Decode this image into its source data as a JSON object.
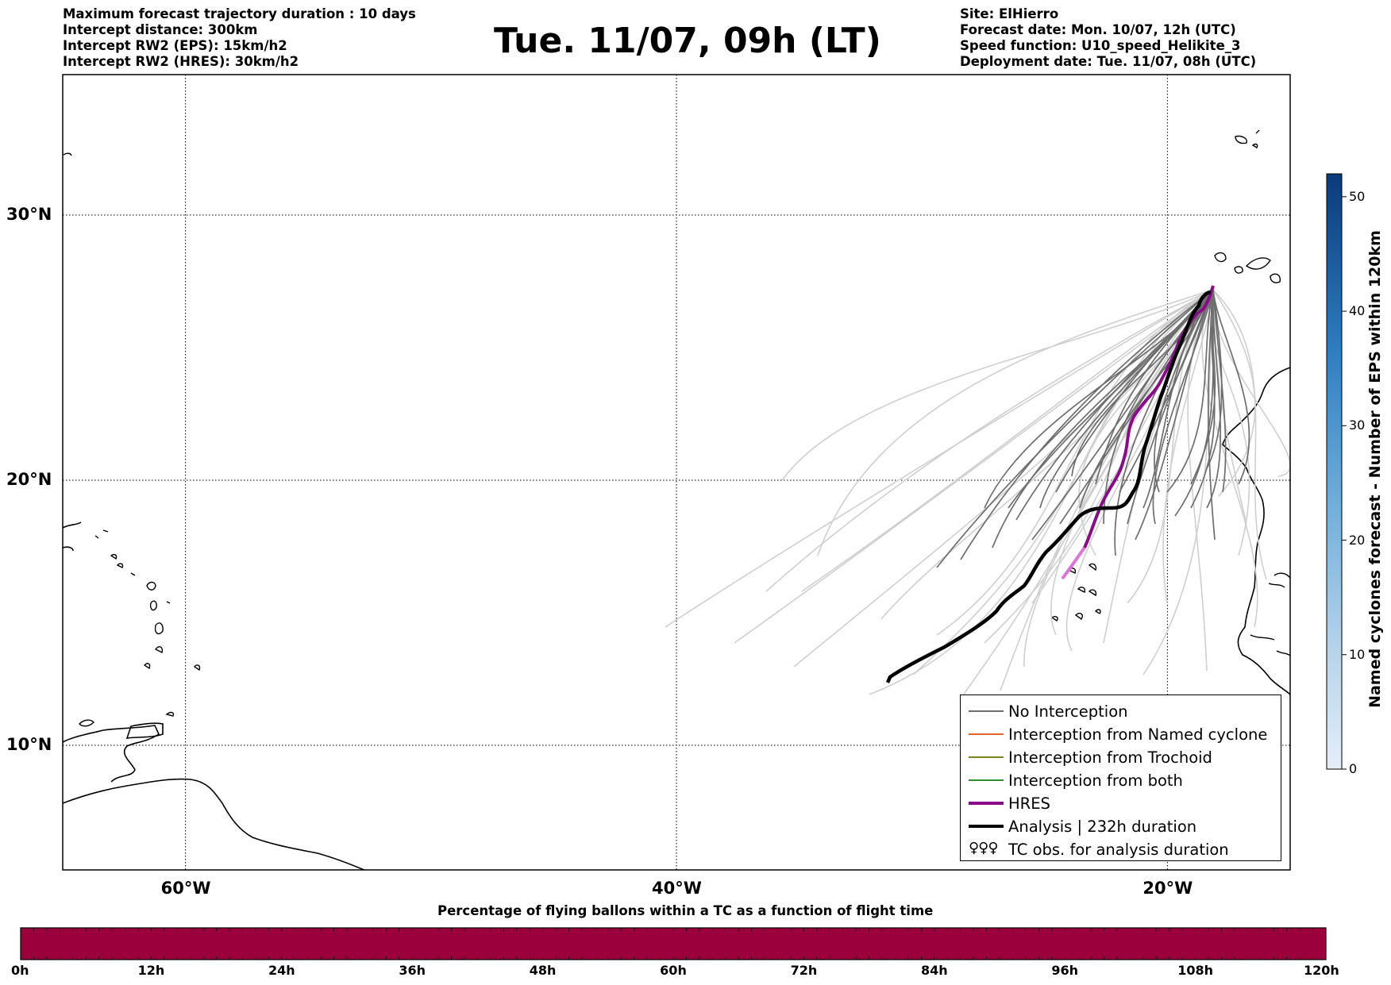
{
  "header": {
    "left_lines": [
      "Maximum forecast trajectory duration : 10 days",
      "Intercept distance: 300km",
      "Intercept RW2 (EPS):  15km/h2",
      "Intercept RW2 (HRES): 30km/h2"
    ],
    "title": "Tue. 11/07, 09h (LT)",
    "right_lines": [
      "Site: ElHierro",
      "Forecast date: Mon. 10/07, 12h (UTC)",
      "Speed function: U10_speed_Helikite_3",
      "Deployment date: Tue. 11/07, 08h (UTC)"
    ]
  },
  "map": {
    "lat_labels": [
      "30°N",
      "20°N",
      "10°N"
    ],
    "lon_labels": [
      "60°W",
      "40°W",
      "20°W"
    ],
    "lat_lines": [
      30,
      20,
      10
    ],
    "lon_lines": [
      -60,
      -40,
      -20
    ],
    "extent": {
      "lon_min": -65,
      "lon_max": -15,
      "lat_min": 5.3,
      "lat_max": 35.3
    },
    "colors": {
      "no_interception": "#6e6e6e",
      "faded_trajectory": "#cfcfcf",
      "named_cyclone": "#e8622c",
      "trochoid": "#808020",
      "both": "#2e8b2e",
      "hres": "#8b0a8b",
      "hres_tail": "#e070e0",
      "analysis": "#000000"
    }
  },
  "legend": {
    "items": [
      {
        "label": "No Interception",
        "color": "#6e6e6e",
        "style": "thin"
      },
      {
        "label": "Interception from Named cyclone",
        "color": "#e8622c",
        "style": "thin"
      },
      {
        "label": "Interception from Trochoid",
        "color": "#808020",
        "style": "thin"
      },
      {
        "label": "Interception from both",
        "color": "#2e8b2e",
        "style": "thin"
      },
      {
        "label": "HRES",
        "color": "#8b0a8b",
        "style": "thick"
      },
      {
        "label": "Analysis | 232h duration",
        "color": "#000000",
        "style": "thick"
      },
      {
        "label": "TC obs. for analysis duration",
        "color": "#000000",
        "style": "symbol",
        "symbol": "♀♀♀"
      }
    ]
  },
  "colorbar": {
    "label": "Named cyclones forecast - Number of EPS within 120km",
    "ticks": [
      "0",
      "10",
      "20",
      "30",
      "40",
      "50"
    ],
    "min": 0,
    "max": 52,
    "color_low": "#e4eef9",
    "color_high": "#0b3a78"
  },
  "time_bar": {
    "title": "Percentage of flying ballons within a TC as a function of flight time",
    "ticks": [
      "0h",
      "12h",
      "24h",
      "36h",
      "48h",
      "60h",
      "72h",
      "84h",
      "96h",
      "108h",
      "120h"
    ],
    "fill_color": "#9b003c"
  }
}
